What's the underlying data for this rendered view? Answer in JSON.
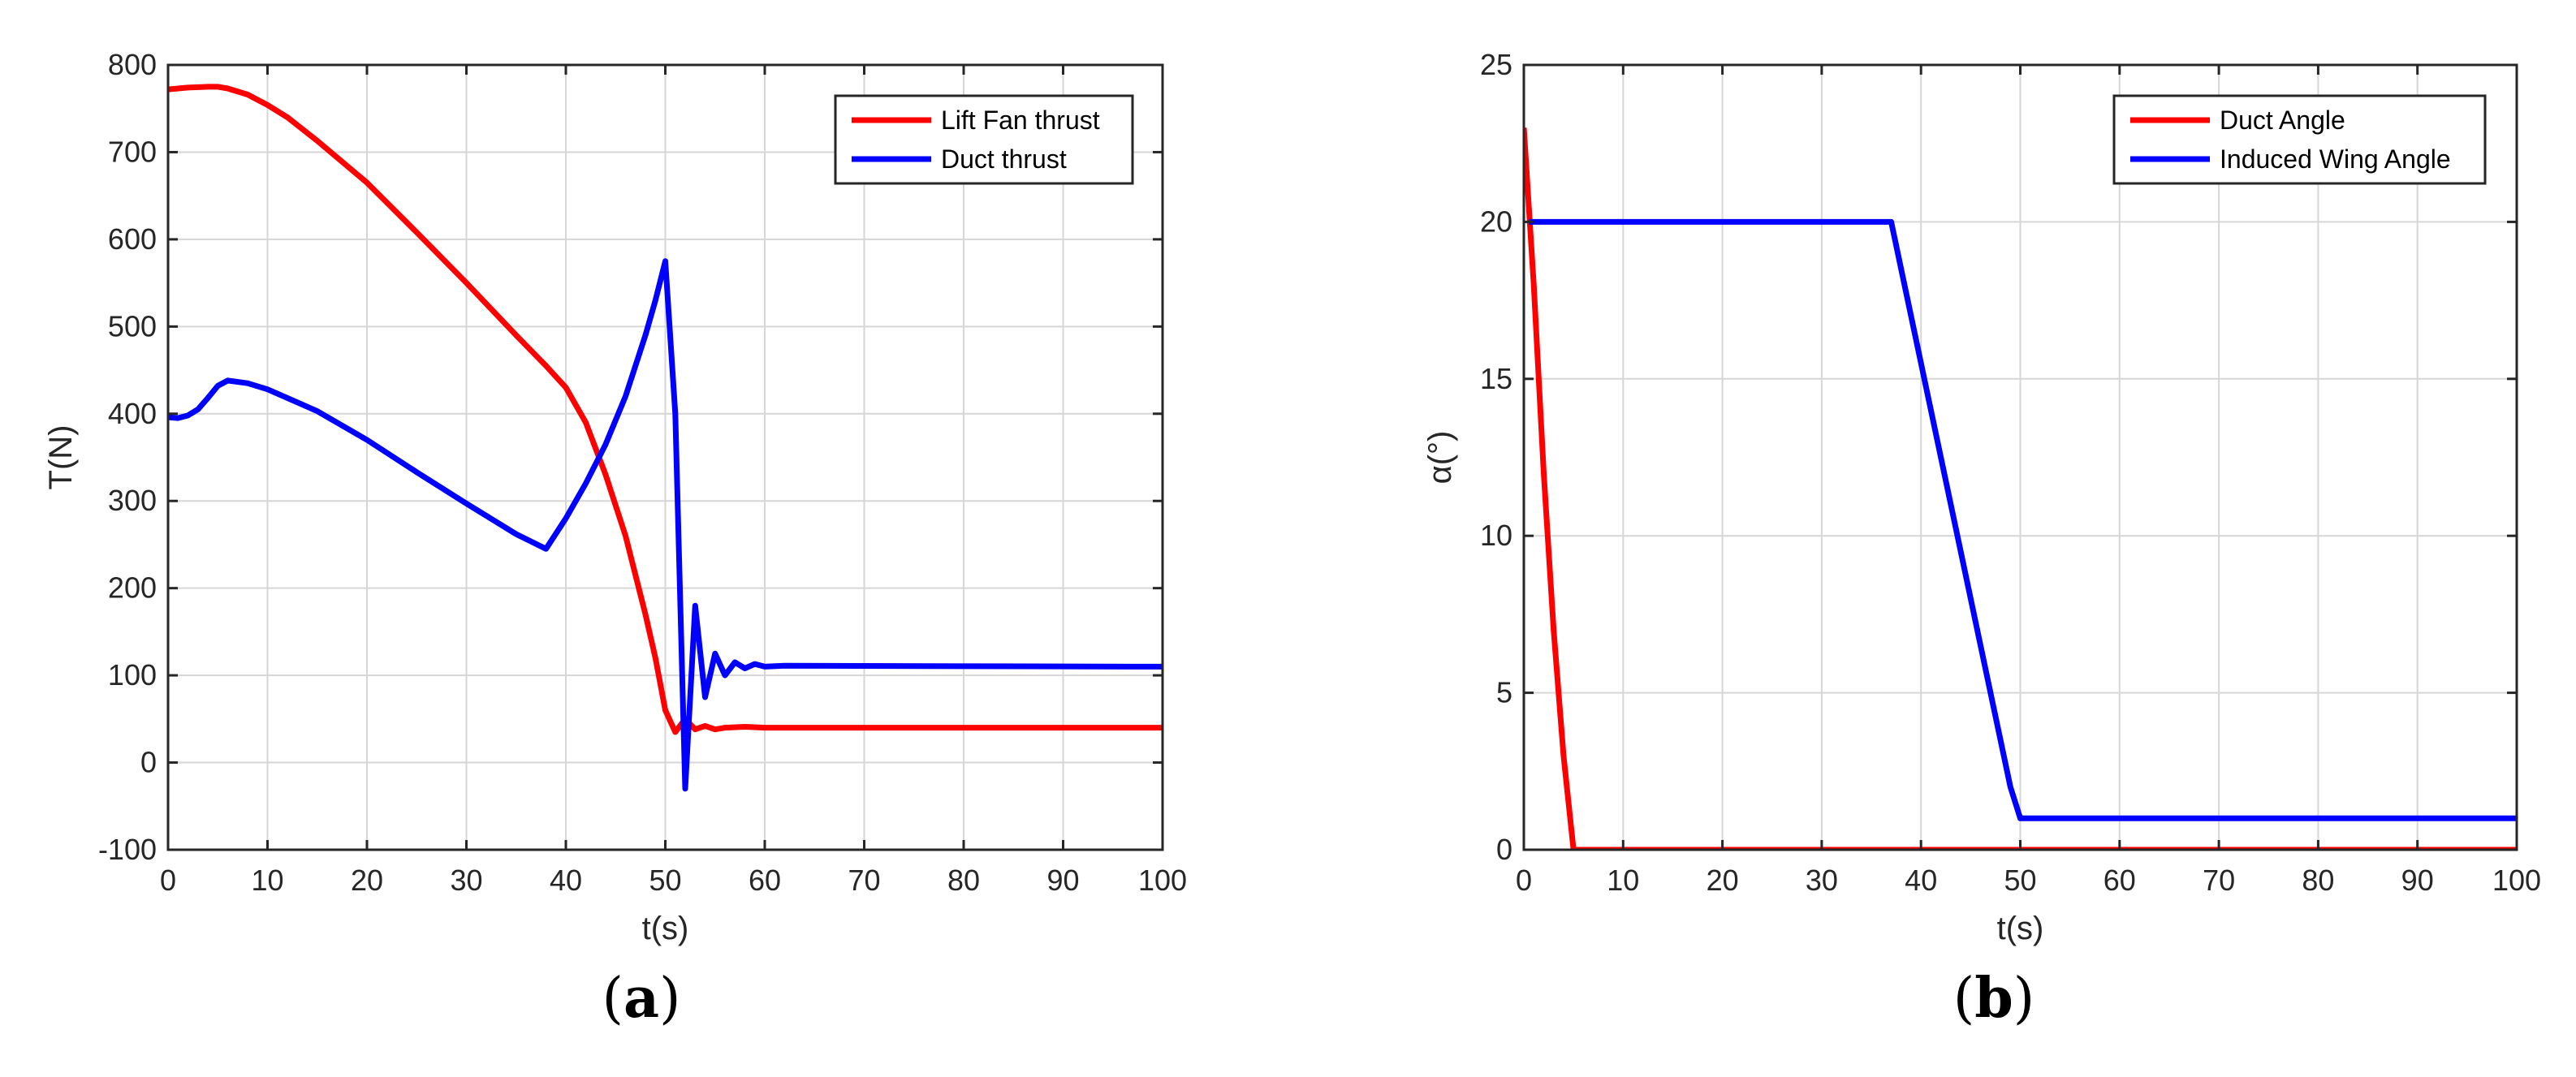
{
  "colors": {
    "red": "#ff0000",
    "blue": "#0000ff",
    "grid": "#d6d6d6",
    "axis": "#262626"
  },
  "panel_captions": [
    {
      "open": "(",
      "letter": "a",
      "close": ")"
    },
    {
      "open": "(",
      "letter": "b",
      "close": ")"
    }
  ],
  "chart_data": [
    {
      "type": "line",
      "title": "",
      "xlabel": "t(s)",
      "ylabel": "T(N)",
      "xlim": [
        0,
        100
      ],
      "ylim": [
        -100,
        800
      ],
      "xticks": [
        0,
        10,
        20,
        30,
        40,
        50,
        60,
        70,
        80,
        90,
        100
      ],
      "yticks": [
        -100,
        0,
        100,
        200,
        300,
        400,
        500,
        600,
        700,
        800
      ],
      "grid": true,
      "legend_position": "top-right",
      "series": [
        {
          "name": "Lift Fan thrust",
          "color": "#ff0000",
          "x": [
            0,
            2,
            4,
            5,
            6,
            8,
            10,
            12,
            15,
            20,
            25,
            30,
            35,
            38,
            40,
            42,
            44,
            46,
            48,
            49,
            50,
            51,
            52,
            53,
            54,
            55,
            56,
            58,
            60,
            100
          ],
          "y": [
            772,
            774,
            775,
            775,
            773,
            766,
            754,
            740,
            713,
            665,
            608,
            550,
            490,
            455,
            430,
            390,
            330,
            260,
            170,
            120,
            60,
            35,
            50,
            38,
            42,
            38,
            40,
            41,
            40,
            40
          ]
        },
        {
          "name": "Duct thrust",
          "color": "#0000ff",
          "x": [
            0,
            1,
            2,
            3,
            4,
            5,
            6,
            8,
            10,
            15,
            20,
            25,
            30,
            35,
            38,
            40,
            42,
            44,
            46,
            48,
            49,
            50,
            51,
            52,
            53,
            54,
            55,
            56,
            57,
            58,
            59,
            60,
            62,
            100
          ],
          "y": [
            396,
            395,
            398,
            405,
            418,
            432,
            438,
            435,
            428,
            403,
            370,
            333,
            297,
            262,
            245,
            280,
            320,
            365,
            420,
            490,
            530,
            575,
            400,
            -30,
            180,
            75,
            125,
            100,
            115,
            108,
            113,
            110,
            111,
            110
          ]
        }
      ]
    },
    {
      "type": "line",
      "title": "",
      "xlabel": "t(s)",
      "ylabel": "α(°)",
      "xlim": [
        0,
        100
      ],
      "ylim": [
        0,
        25
      ],
      "xticks": [
        0,
        10,
        20,
        30,
        40,
        50,
        60,
        70,
        80,
        90,
        100
      ],
      "yticks": [
        0,
        5,
        10,
        15,
        20,
        25
      ],
      "grid": true,
      "legend_position": "top-right",
      "series": [
        {
          "name": "Duct Angle",
          "color": "#ff0000",
          "x": [
            0,
            1,
            2,
            3,
            4,
            5,
            100
          ],
          "y": [
            23,
            18,
            12,
            7,
            3,
            0,
            0
          ]
        },
        {
          "name": "Induced Wing Angle",
          "color": "#0000ff",
          "x": [
            0.5,
            37,
            49,
            50,
            100
          ],
          "y": [
            20,
            20,
            2,
            1,
            1
          ]
        }
      ]
    }
  ]
}
